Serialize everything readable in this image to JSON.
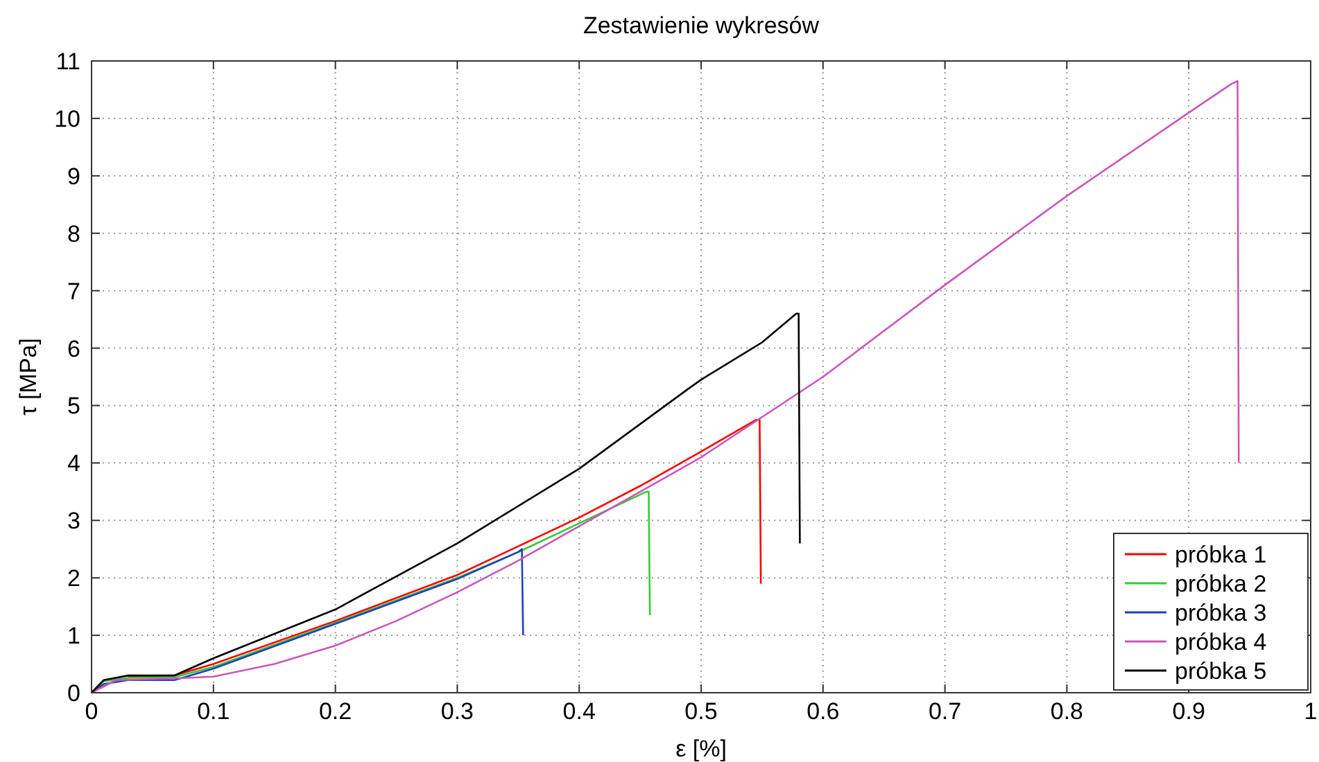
{
  "chart_data": {
    "type": "line",
    "title": "Zestawienie wykresów",
    "xlabel": "ε [%]",
    "ylabel": "τ [MPa]",
    "xlim": [
      0,
      1
    ],
    "xticks": [
      0,
      0.1,
      0.2,
      0.3,
      0.4,
      0.5,
      0.6,
      0.7,
      0.8,
      0.9,
      1
    ],
    "ylim": [
      0,
      11
    ],
    "yticks": [
      0,
      1,
      2,
      3,
      4,
      5,
      6,
      7,
      8,
      9,
      10,
      11
    ],
    "grid": true,
    "legend": "bottom right",
    "line_style": "solid",
    "series": [
      {
        "name": "próbka 1",
        "color": "#ff0000",
        "x": [
          0.03,
          0.068,
          0.1,
          0.2,
          0.3,
          0.35,
          0.4,
          0.45,
          0.5,
          0.545,
          0.548,
          0.549
        ],
        "values": [
          0.28,
          0.3,
          0.5,
          1.25,
          2.05,
          2.55,
          3.05,
          3.6,
          4.2,
          4.75,
          4.75,
          1.9
        ]
      },
      {
        "name": "próbka 2",
        "color": "#33cc33",
        "x": [
          0,
          0.01,
          0.03,
          0.068,
          0.1,
          0.2,
          0.3,
          0.35,
          0.4,
          0.455,
          0.457,
          0.458
        ],
        "values": [
          0,
          0.2,
          0.26,
          0.27,
          0.45,
          1.22,
          2.0,
          2.45,
          2.95,
          3.5,
          3.5,
          1.35
        ]
      },
      {
        "name": "próbka 3",
        "color": "#1f3fbf",
        "x": [
          0,
          0.01,
          0.03,
          0.068,
          0.1,
          0.2,
          0.3,
          0.35,
          0.353,
          0.354
        ],
        "values": [
          0,
          0.15,
          0.22,
          0.22,
          0.42,
          1.2,
          1.98,
          2.45,
          2.5,
          1.0
        ]
      },
      {
        "name": "próbka 4",
        "color": "#cc55bb",
        "x": [
          0,
          0.02,
          0.07,
          0.1,
          0.15,
          0.2,
          0.25,
          0.3,
          0.35,
          0.4,
          0.5,
          0.6,
          0.7,
          0.8,
          0.9,
          0.935,
          0.94,
          0.941
        ],
        "values": [
          0,
          0.22,
          0.25,
          0.28,
          0.5,
          0.82,
          1.25,
          1.75,
          2.3,
          2.9,
          4.1,
          5.5,
          7.1,
          8.65,
          10.1,
          10.6,
          10.65,
          4.0
        ]
      },
      {
        "name": "próbka 5",
        "color": "#000000",
        "x": [
          0,
          0.01,
          0.03,
          0.068,
          0.1,
          0.2,
          0.3,
          0.4,
          0.49,
          0.5,
          0.55,
          0.578,
          0.58,
          0.581
        ],
        "values": [
          0,
          0.22,
          0.3,
          0.3,
          0.6,
          1.45,
          2.6,
          3.9,
          5.3,
          5.45,
          6.1,
          6.6,
          6.6,
          2.6
        ]
      }
    ]
  }
}
